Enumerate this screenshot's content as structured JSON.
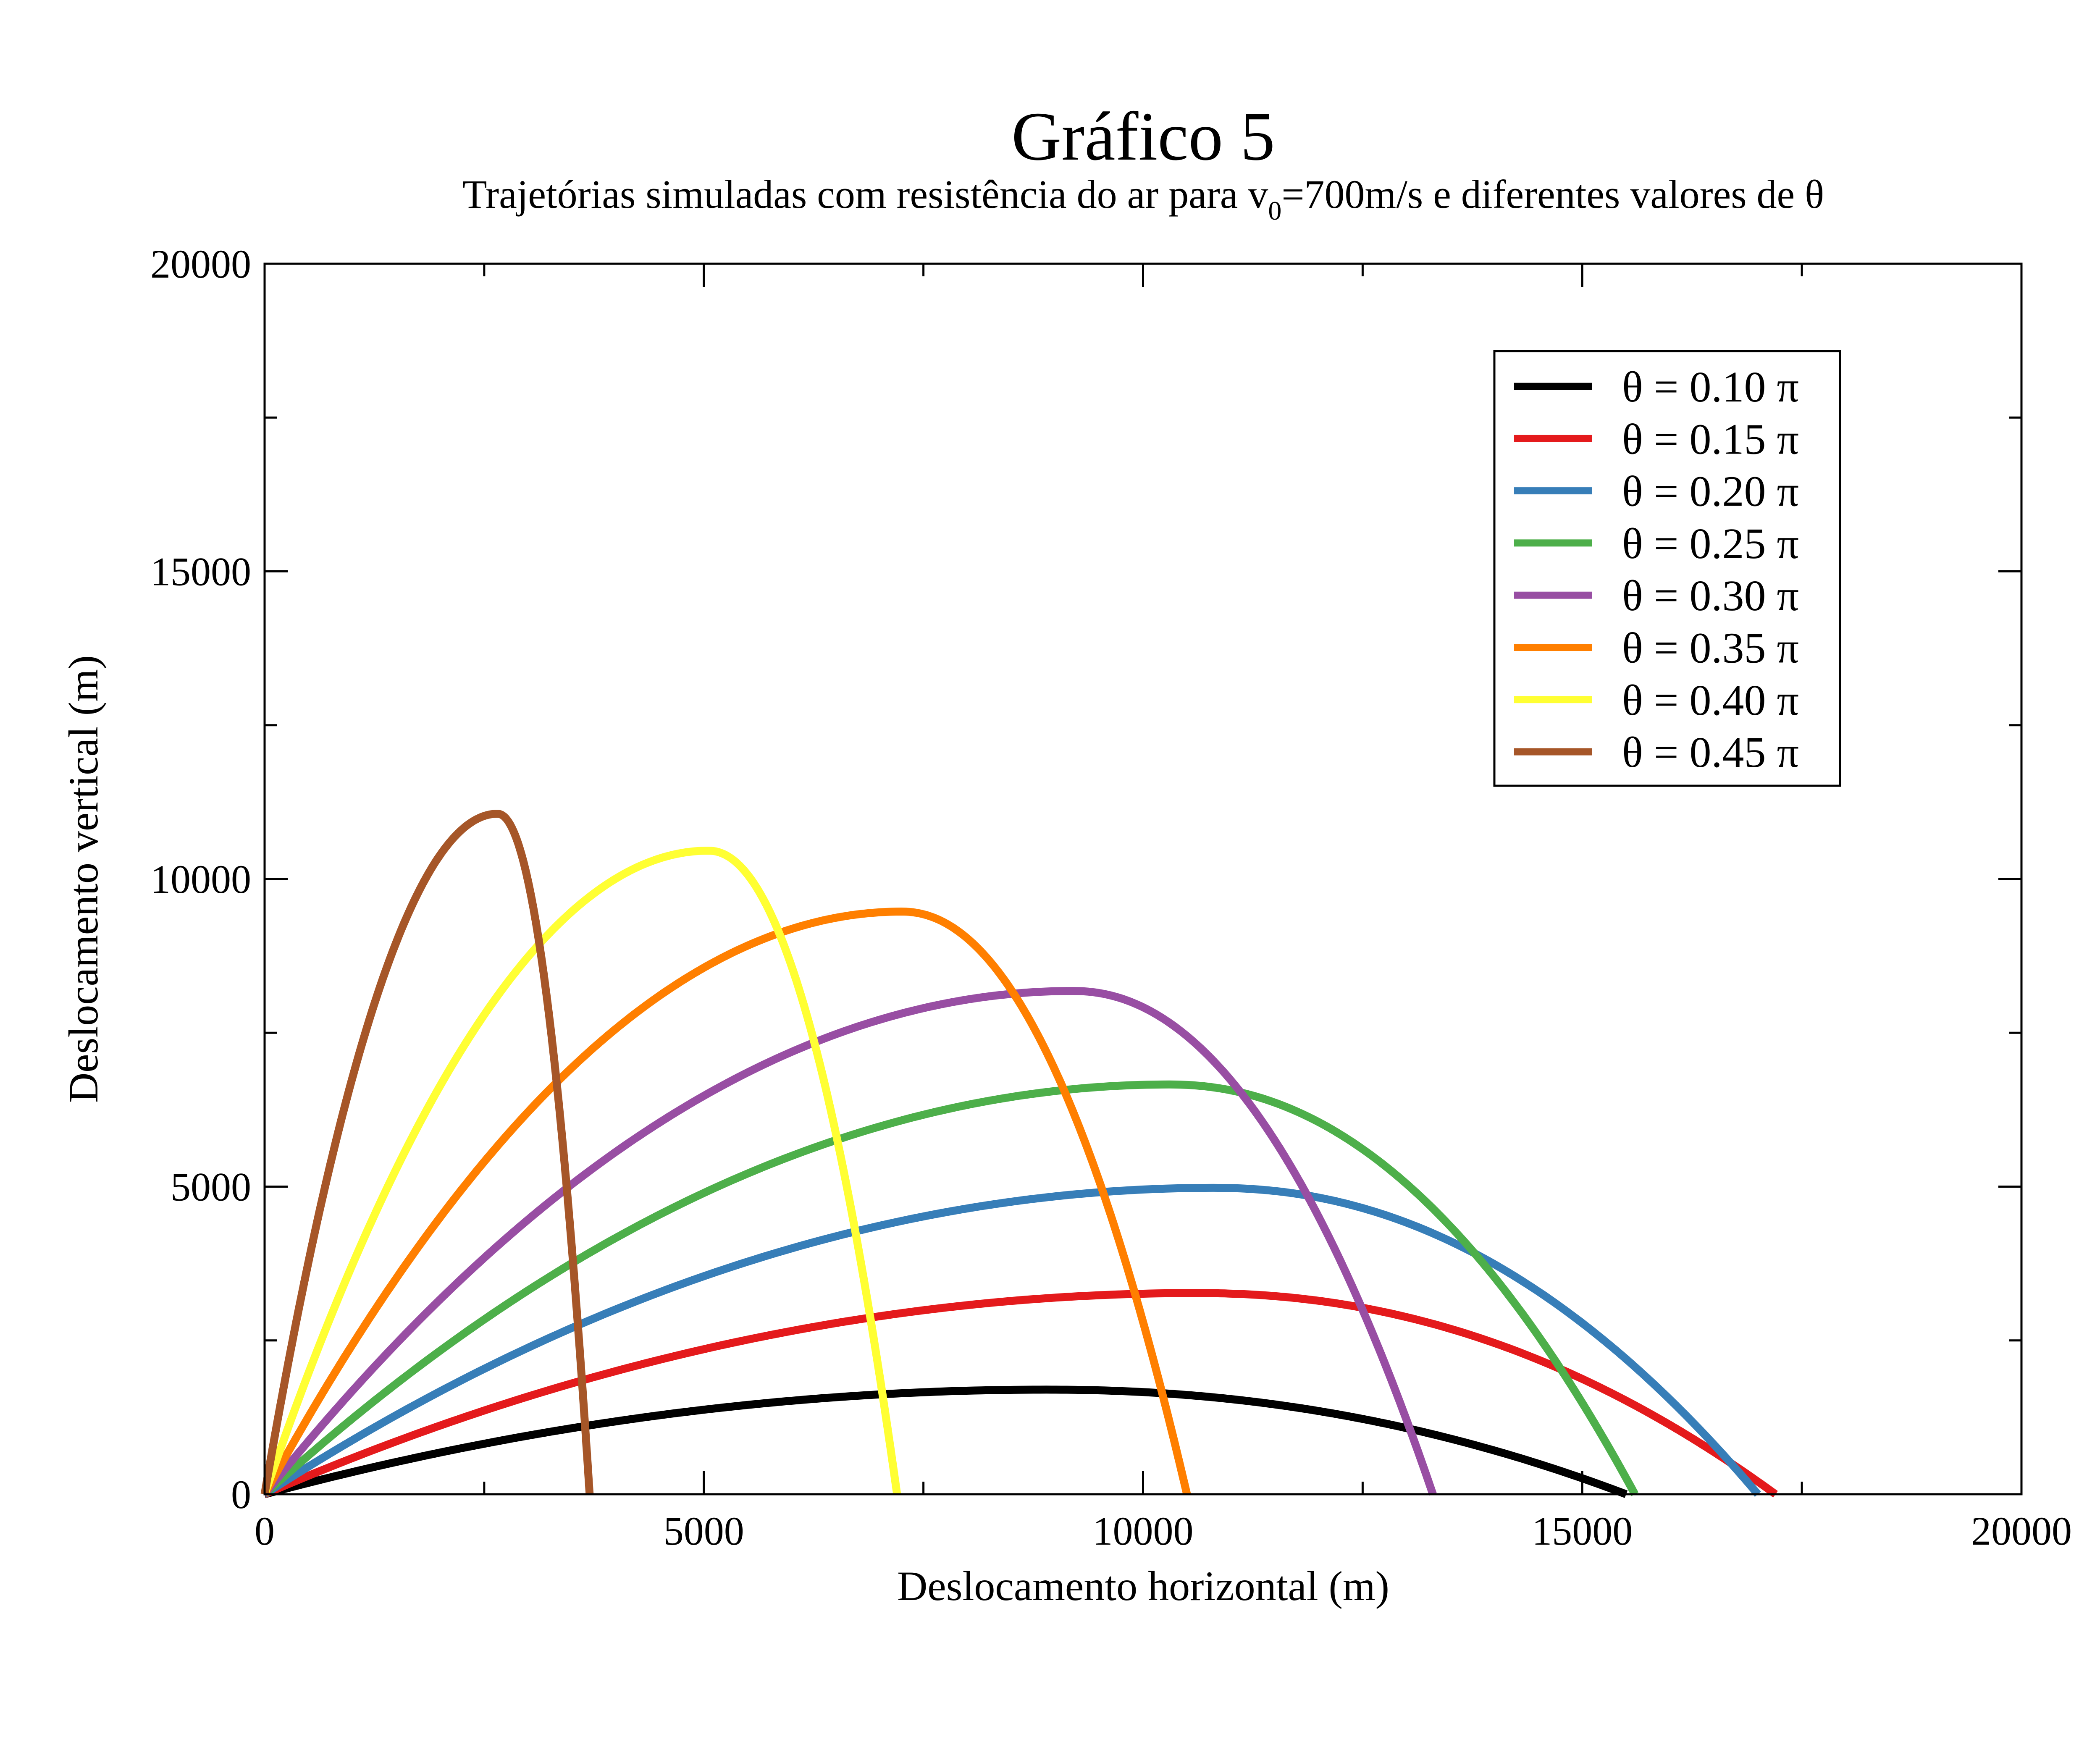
{
  "chart_data": {
    "type": "line",
    "title": "Gráfico 5",
    "subtitle": {
      "before": "Trajetórias simuladas com resistência do ar para v",
      "subscript": "0",
      "after": "=700m/s e diferentes valores de θ"
    },
    "xlabel": "Deslocamento horizontal (m)",
    "ylabel": "Deslocamento vertical (m)",
    "xlim": [
      0,
      20000
    ],
    "ylim": [
      0,
      20000
    ],
    "x_major_ticks": [
      0,
      5000,
      10000,
      15000,
      20000
    ],
    "y_major_ticks": [
      0,
      5000,
      10000,
      15000,
      20000
    ],
    "x_tick_labels": [
      "0",
      "5000",
      "10000",
      "15000",
      "20000"
    ],
    "y_tick_labels": [
      "0",
      "5000",
      "10000",
      "15000",
      "20000"
    ],
    "grid": false,
    "legend_position": "top-right",
    "series": [
      {
        "name": "θ = 0.10 π",
        "color": "#000000",
        "peak": [
          8900,
          1700
        ],
        "range": 15500
      },
      {
        "name": "θ = 0.15 π",
        "color": "#e41a1c",
        "peak": [
          10600,
          3270
        ],
        "range": 17200
      },
      {
        "name": "θ = 0.20 π",
        "color": "#377eb8",
        "peak": [
          10800,
          4980
        ],
        "range": 17000
      },
      {
        "name": "θ = 0.25 π",
        "color": "#4daf4a",
        "peak": [
          10300,
          6660
        ],
        "range": 15600
      },
      {
        "name": "θ = 0.30 π",
        "color": "#984ea3",
        "peak": [
          9200,
          8180
        ],
        "range": 13300
      },
      {
        "name": "θ = 0.35 π",
        "color": "#ff7f00",
        "peak": [
          7250,
          9470
        ],
        "range": 10500
      },
      {
        "name": "θ = 0.40 π",
        "color": "#ffff33",
        "peak": [
          5050,
          10460
        ],
        "range": 7200
      },
      {
        "name": "θ = 0.45 π",
        "color": "#a65628",
        "peak": [
          2650,
          11060
        ],
        "range": 3700
      }
    ]
  }
}
